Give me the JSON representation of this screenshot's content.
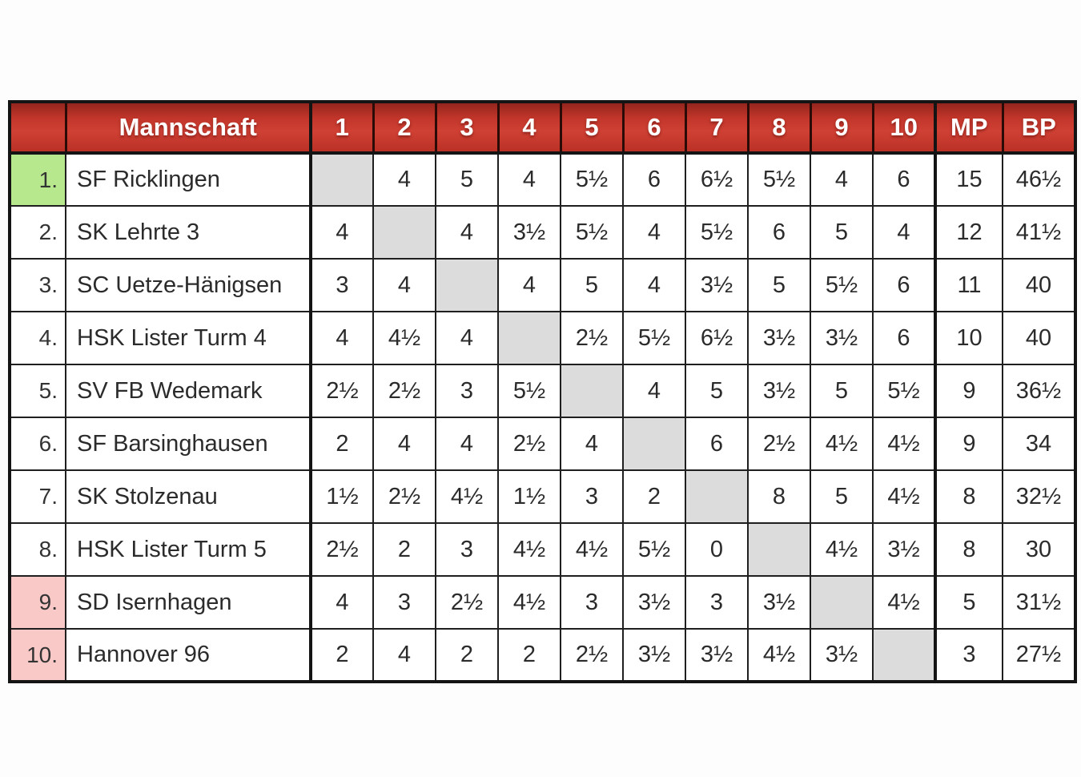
{
  "table": {
    "headers": {
      "rank": "",
      "team": "Mannschaft",
      "rounds": [
        "1",
        "2",
        "3",
        "4",
        "5",
        "6",
        "7",
        "8",
        "9",
        "10"
      ],
      "mp": "MP",
      "bp": "BP"
    },
    "rows": [
      {
        "rank": "1.",
        "team": "SF Ricklingen",
        "highlight": "green",
        "scores": [
          "",
          "4",
          "5",
          "4",
          "5½",
          "6",
          "6½",
          "5½",
          "4",
          "6"
        ],
        "mp": "15",
        "bp": "46½"
      },
      {
        "rank": "2.",
        "team": "SK Lehrte 3",
        "highlight": null,
        "scores": [
          "4",
          "",
          "4",
          "3½",
          "5½",
          "4",
          "5½",
          "6",
          "5",
          "4"
        ],
        "mp": "12",
        "bp": "41½"
      },
      {
        "rank": "3.",
        "team": "SC Uetze-Hänigsen",
        "highlight": null,
        "scores": [
          "3",
          "4",
          "",
          "4",
          "5",
          "4",
          "3½",
          "5",
          "5½",
          "6"
        ],
        "mp": "11",
        "bp": "40"
      },
      {
        "rank": "4.",
        "team": "HSK Lister Turm 4",
        "highlight": null,
        "scores": [
          "4",
          "4½",
          "4",
          "",
          "2½",
          "5½",
          "6½",
          "3½",
          "3½",
          "6"
        ],
        "mp": "10",
        "bp": "40"
      },
      {
        "rank": "5.",
        "team": "SV FB Wedemark",
        "highlight": null,
        "scores": [
          "2½",
          "2½",
          "3",
          "5½",
          "",
          "4",
          "5",
          "3½",
          "5",
          "5½"
        ],
        "mp": "9",
        "bp": "36½"
      },
      {
        "rank": "6.",
        "team": "SF Barsinghausen",
        "highlight": null,
        "scores": [
          "2",
          "4",
          "4",
          "2½",
          "4",
          "",
          "6",
          "2½",
          "4½",
          "4½"
        ],
        "mp": "9",
        "bp": "34"
      },
      {
        "rank": "7.",
        "team": "SK Stolzenau",
        "highlight": null,
        "scores": [
          "1½",
          "2½",
          "4½",
          "1½",
          "3",
          "2",
          "",
          "8",
          "5",
          "4½"
        ],
        "mp": "8",
        "bp": "32½"
      },
      {
        "rank": "8.",
        "team": "HSK Lister Turm 5",
        "highlight": null,
        "scores": [
          "2½",
          "2",
          "3",
          "4½",
          "4½",
          "5½",
          "0",
          "",
          "4½",
          "3½"
        ],
        "mp": "8",
        "bp": "30"
      },
      {
        "rank": "9.",
        "team": "SD Isernhagen",
        "highlight": "pink",
        "scores": [
          "4",
          "3",
          "2½",
          "4½",
          "3",
          "3½",
          "3",
          "3½",
          "",
          "4½"
        ],
        "mp": "5",
        "bp": "31½"
      },
      {
        "rank": "10.",
        "team": "Hannover 96",
        "highlight": "pink",
        "scores": [
          "2",
          "4",
          "2",
          "2",
          "2½",
          "3½",
          "3½",
          "4½",
          "3½",
          ""
        ],
        "mp": "3",
        "bp": "27½"
      }
    ]
  },
  "colors": {
    "header_red": "#c73a2e",
    "header_red_dark": "#93251d",
    "promotion_green": "#b7e88e",
    "relegation_pink": "#f8c9c7",
    "diagonal_gray": "#dcdcdc",
    "grid_border": "#1f1f1f",
    "body_text": "#2b2b2b",
    "header_text": "#ffffff"
  },
  "chart_data": {
    "type": "table",
    "title": "Mannschaft league crosstable standings",
    "columns": [
      "",
      "Mannschaft",
      "1",
      "2",
      "3",
      "4",
      "5",
      "6",
      "7",
      "8",
      "9",
      "10",
      "MP",
      "BP"
    ],
    "rows": [
      [
        "1.",
        "SF Ricklingen",
        "",
        "4",
        "5",
        "4",
        "5½",
        "6",
        "6½",
        "5½",
        "4",
        "6",
        "15",
        "46½"
      ],
      [
        "2.",
        "SK Lehrte 3",
        "4",
        "",
        "4",
        "3½",
        "5½",
        "4",
        "5½",
        "6",
        "5",
        "4",
        "12",
        "41½"
      ],
      [
        "3.",
        "SC Uetze-Hänigsen",
        "3",
        "4",
        "",
        "4",
        "5",
        "4",
        "3½",
        "5",
        "5½",
        "6",
        "11",
        "40"
      ],
      [
        "4.",
        "HSK Lister Turm 4",
        "4",
        "4½",
        "4",
        "",
        "2½",
        "5½",
        "6½",
        "3½",
        "3½",
        "6",
        "10",
        "40"
      ],
      [
        "5.",
        "SV FB Wedemark",
        "2½",
        "2½",
        "3",
        "5½",
        "",
        "4",
        "5",
        "3½",
        "5",
        "5½",
        "9",
        "36½"
      ],
      [
        "6.",
        "SF Barsinghausen",
        "2",
        "4",
        "4",
        "2½",
        "4",
        "",
        "6",
        "2½",
        "4½",
        "4½",
        "9",
        "34"
      ],
      [
        "7.",
        "SK Stolzenau",
        "1½",
        "2½",
        "4½",
        "1½",
        "3",
        "2",
        "",
        "8",
        "5",
        "4½",
        "8",
        "32½"
      ],
      [
        "8.",
        "HSK Lister Turm 5",
        "2½",
        "2",
        "3",
        "4½",
        "4½",
        "5½",
        "0",
        "",
        "4½",
        "3½",
        "8",
        "30"
      ],
      [
        "9.",
        "SD Isernhagen",
        "4",
        "3",
        "2½",
        "4½",
        "3",
        "3½",
        "3",
        "3½",
        "",
        "4½",
        "5",
        "31½"
      ],
      [
        "10.",
        "Hannover 96",
        "2",
        "4",
        "2",
        "2",
        "2½",
        "3½",
        "3½",
        "4½",
        "3½",
        "",
        "3",
        "27½"
      ]
    ],
    "layout_hints": {
      "diagonal_cells_grayed": true,
      "rank_1_highlight": "light-green",
      "rank_9_10_highlight": "light-pink",
      "header_style": "red gradient with white bold text"
    }
  }
}
